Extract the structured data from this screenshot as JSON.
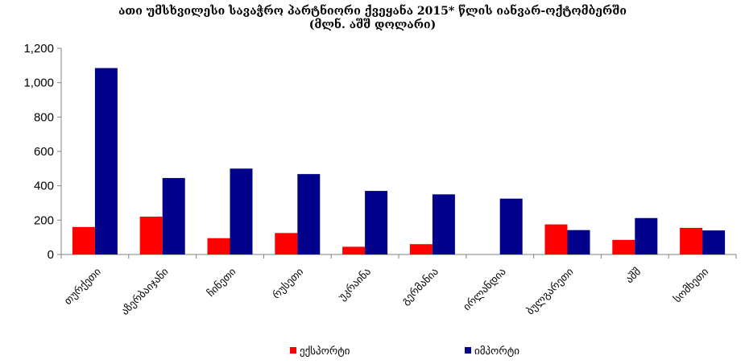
{
  "chart_data": {
    "type": "bar",
    "title": "ათი უმსხვილესი სავაჭრო პარტნიორი ქვეყანა 2015* წლის იანვარ-ოქტომბერში",
    "subtitle": "(მლნ. აშშ დოლარი)",
    "categories": [
      "თურქეთი",
      "აზერბაიჯანი",
      "ჩინეთი",
      "რუსეთი",
      "უკრაინა",
      "გერმანია",
      "ირლანდია",
      "ბულგარეთი",
      "აშშ",
      "სომხეთი"
    ],
    "series": [
      {
        "name": "ექსპორტი",
        "color": "#ff0000",
        "values": [
          160,
          220,
          95,
          125,
          45,
          60,
          0,
          175,
          85,
          155
        ]
      },
      {
        "name": "იმპორტი",
        "color": "#00008b",
        "values": [
          1085,
          445,
          500,
          468,
          370,
          350,
          325,
          142,
          212,
          140
        ]
      }
    ],
    "ylim": [
      0,
      1200
    ],
    "yticks": [
      0,
      200,
      400,
      600,
      800,
      1000,
      1200
    ],
    "ytick_labels": [
      "0",
      "200",
      "400",
      "600",
      "800",
      "1,000",
      "1,200"
    ],
    "grid": false,
    "legend_position": "bottom"
  }
}
